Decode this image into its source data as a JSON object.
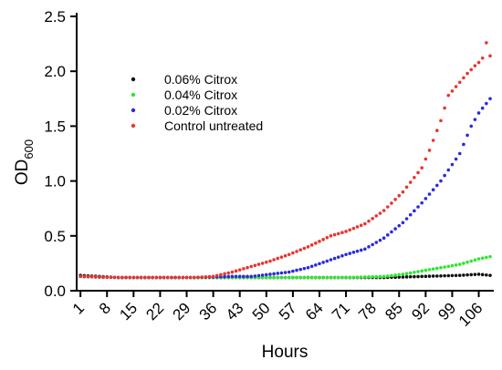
{
  "chart_data": {
    "type": "scatter",
    "xlabel": "Hours",
    "ylabel": "OD",
    "ylabel_sub": "600",
    "xlim": [
      0,
      109
    ],
    "ylim": [
      0,
      2.5
    ],
    "x_ticks": [
      "1",
      "8",
      "15",
      "22",
      "29",
      "36",
      "43",
      "50",
      "57",
      "64",
      "71",
      "78",
      "85",
      "92",
      "99",
      "106"
    ],
    "y_ticks": [
      "0.0",
      "0.5",
      "1.0",
      "1.5",
      "2.0",
      "2.5"
    ],
    "grid": false,
    "legend_position": "upper-left",
    "series": [
      {
        "name": "0.06% Citrox",
        "color": "#111111",
        "points": [
          [
            1,
            0.14
          ],
          [
            11,
            0.12
          ],
          [
            21,
            0.12
          ],
          [
            31,
            0.12
          ],
          [
            41,
            0.12
          ],
          [
            51,
            0.12
          ],
          [
            61,
            0.12
          ],
          [
            71,
            0.12
          ],
          [
            81,
            0.12
          ],
          [
            91,
            0.13
          ],
          [
            101,
            0.14
          ],
          [
            106,
            0.15
          ],
          [
            109,
            0.14
          ]
        ]
      },
      {
        "name": "0.04% Citrox",
        "color": "#2ee62e",
        "points": [
          [
            1,
            0.13
          ],
          [
            11,
            0.12
          ],
          [
            21,
            0.12
          ],
          [
            31,
            0.12
          ],
          [
            41,
            0.12
          ],
          [
            51,
            0.12
          ],
          [
            61,
            0.12
          ],
          [
            71,
            0.12
          ],
          [
            81,
            0.13
          ],
          [
            86,
            0.15
          ],
          [
            91,
            0.18
          ],
          [
            96,
            0.21
          ],
          [
            101,
            0.24
          ],
          [
            106,
            0.29
          ],
          [
            109,
            0.31
          ]
        ]
      },
      {
        "name": "0.02% Citrox",
        "color": "#2b2bd9",
        "points": [
          [
            1,
            0.13
          ],
          [
            11,
            0.12
          ],
          [
            21,
            0.12
          ],
          [
            31,
            0.12
          ],
          [
            41,
            0.13
          ],
          [
            46,
            0.13
          ],
          [
            51,
            0.15
          ],
          [
            56,
            0.17
          ],
          [
            61,
            0.21
          ],
          [
            66,
            0.27
          ],
          [
            71,
            0.33
          ],
          [
            76,
            0.38
          ],
          [
            81,
            0.48
          ],
          [
            86,
            0.62
          ],
          [
            91,
            0.8
          ],
          [
            96,
            1.0
          ],
          [
            101,
            1.25
          ],
          [
            104,
            1.5
          ],
          [
            106,
            1.62
          ],
          [
            109,
            1.75
          ]
        ]
      },
      {
        "name": "Control untreated",
        "color": "#e8352e",
        "points": [
          [
            1,
            0.13
          ],
          [
            11,
            0.12
          ],
          [
            21,
            0.12
          ],
          [
            31,
            0.12
          ],
          [
            36,
            0.13
          ],
          [
            41,
            0.17
          ],
          [
            46,
            0.22
          ],
          [
            51,
            0.27
          ],
          [
            56,
            0.33
          ],
          [
            61,
            0.4
          ],
          [
            64,
            0.45
          ],
          [
            67,
            0.5
          ],
          [
            71,
            0.54
          ],
          [
            76,
            0.61
          ],
          [
            81,
            0.73
          ],
          [
            86,
            0.9
          ],
          [
            91,
            1.12
          ],
          [
            93,
            1.28
          ],
          [
            96,
            1.55
          ],
          [
            98,
            1.78
          ],
          [
            101,
            1.9
          ],
          [
            103,
            1.98
          ],
          [
            105,
            2.05
          ],
          [
            106,
            2.08
          ],
          [
            107,
            2.12
          ],
          [
            108,
            2.26
          ],
          [
            109,
            2.14
          ]
        ]
      }
    ]
  }
}
